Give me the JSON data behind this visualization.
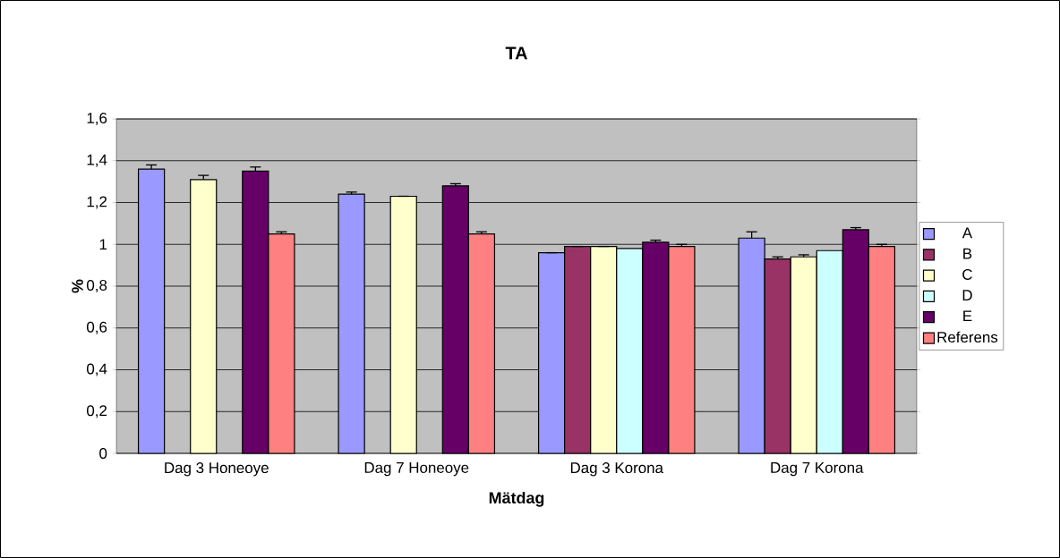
{
  "chart_data": {
    "type": "bar",
    "title": "TA",
    "xlabel": "Mätdag",
    "ylabel": "%",
    "categories": [
      "Dag 3 Honeoye",
      "Dag 7 Honeoye",
      "Dag 3 Korona",
      "Dag 7 Korona"
    ],
    "series": [
      {
        "name": "A",
        "color": "#9999ff",
        "values": [
          1.36,
          1.24,
          0.96,
          1.03
        ],
        "errors": [
          0.02,
          0.01,
          null,
          0.03
        ]
      },
      {
        "name": "B",
        "color": "#993366",
        "values": [
          null,
          null,
          0.99,
          0.93
        ],
        "errors": [
          null,
          null,
          null,
          0.01
        ]
      },
      {
        "name": "C",
        "color": "#ffffcc",
        "values": [
          1.31,
          1.23,
          0.99,
          0.94
        ],
        "errors": [
          0.02,
          null,
          null,
          0.01
        ]
      },
      {
        "name": "D",
        "color": "#ccffff",
        "values": [
          null,
          null,
          0.98,
          0.97
        ]
      },
      {
        "name": "E",
        "color": "#660066",
        "values": [
          1.35,
          1.28,
          1.01,
          1.07
        ],
        "errors": [
          0.02,
          0.01,
          0.01,
          0.01
        ]
      },
      {
        "name": "Referens",
        "color": "#ff8080",
        "values": [
          1.05,
          1.05,
          0.99,
          0.99
        ],
        "errors": [
          0.01,
          0.01,
          0.01,
          0.01
        ]
      }
    ],
    "ylim": [
      0,
      1.6
    ],
    "yticks": [
      0,
      {
        "value": 0.2,
        "label": "0,2"
      },
      {
        "value": 0.4,
        "label": "0,4"
      },
      {
        "value": 0.6,
        "label": "0,6"
      },
      {
        "value": 0.8,
        "label": "0,8"
      },
      1,
      {
        "value": 1.2,
        "label": "1,2"
      },
      {
        "value": 1.4,
        "label": "1,4"
      },
      {
        "value": 1.6,
        "label": "1,6"
      }
    ],
    "grid": "y",
    "legend": "right"
  }
}
